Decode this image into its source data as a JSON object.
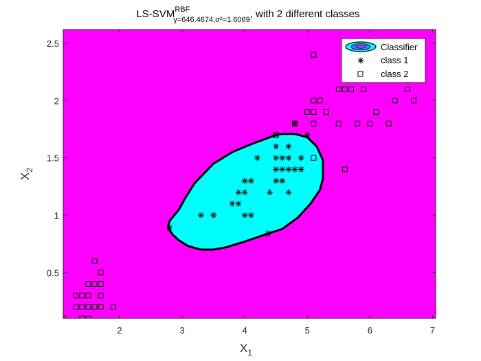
{
  "chart_data": {
    "type": "scatter",
    "title": {
      "main": "LS-SVM",
      "superscript": "RBF",
      "subscript": "γ=646.4674,σ²=1.6069",
      "suffix": ", with 2 different classes"
    },
    "xlabel": {
      "base": "X",
      "sub": "1"
    },
    "ylabel": {
      "base": "X",
      "sub": "2"
    },
    "xlim": [
      1.1,
      7.05
    ],
    "ylim": [
      0.1,
      2.62
    ],
    "xticks": [
      2,
      3,
      4,
      5,
      6,
      7
    ],
    "yticks": [
      0.5,
      1,
      1.5,
      2,
      2.5
    ],
    "xtick_labels": [
      "2",
      "3",
      "4",
      "5",
      "6",
      "7"
    ],
    "ytick_labels": [
      "0.5",
      "1",
      "1.5",
      "2",
      "2.5"
    ],
    "background_color": "#ff00ff",
    "region_color": "#00ffff",
    "legend": {
      "position": "top-right",
      "entries": [
        {
          "label": "Classifier",
          "marker": "contour"
        },
        {
          "label": "class 1",
          "marker": "asterisk"
        },
        {
          "label": "class 2",
          "marker": "square"
        }
      ]
    },
    "classifier_boundary": [
      [
        2.77,
        0.89
      ],
      [
        2.8,
        0.95
      ],
      [
        2.95,
        1.05
      ],
      [
        3.05,
        1.15
      ],
      [
        3.2,
        1.28
      ],
      [
        3.5,
        1.45
      ],
      [
        3.8,
        1.55
      ],
      [
        4.1,
        1.62
      ],
      [
        4.4,
        1.68
      ],
      [
        4.5,
        1.7
      ],
      [
        4.6,
        1.71
      ],
      [
        4.8,
        1.71
      ],
      [
        5.0,
        1.68
      ],
      [
        5.15,
        1.6
      ],
      [
        5.25,
        1.48
      ],
      [
        5.25,
        1.32
      ],
      [
        5.2,
        1.22
      ],
      [
        5.05,
        1.1
      ],
      [
        4.85,
        0.98
      ],
      [
        4.6,
        0.88
      ],
      [
        4.37,
        0.84
      ],
      [
        4.0,
        0.77
      ],
      [
        3.7,
        0.72
      ],
      [
        3.5,
        0.7
      ],
      [
        3.3,
        0.7
      ],
      [
        3.1,
        0.73
      ],
      [
        2.95,
        0.78
      ],
      [
        2.85,
        0.83
      ]
    ],
    "series": [
      {
        "name": "class 1",
        "marker": "asterisk",
        "points": [
          [
            3.3,
            1.0
          ],
          [
            3.5,
            1.0
          ],
          [
            3.8,
            1.1
          ],
          [
            3.9,
            1.1
          ],
          [
            3.9,
            1.2
          ],
          [
            4.0,
            1.2
          ],
          [
            4.0,
            1.3
          ],
          [
            4.1,
            1.3
          ],
          [
            4.0,
            1.0
          ],
          [
            4.1,
            1.0
          ],
          [
            4.2,
            1.5
          ],
          [
            4.4,
            1.2
          ],
          [
            4.5,
            1.3
          ],
          [
            4.5,
            1.4
          ],
          [
            4.5,
            1.5
          ],
          [
            4.5,
            1.6
          ],
          [
            4.6,
            1.5
          ],
          [
            4.6,
            1.4
          ],
          [
            4.6,
            1.3
          ],
          [
            4.7,
            1.4
          ],
          [
            4.7,
            1.5
          ],
          [
            4.7,
            1.6
          ],
          [
            4.7,
            1.2
          ],
          [
            4.8,
            1.4
          ],
          [
            4.9,
            1.5
          ],
          [
            4.9,
            1.4
          ],
          [
            5.0,
            1.7
          ],
          [
            4.8,
            1.8
          ],
          [
            4.5,
            1.7
          ],
          [
            4.37,
            0.84
          ],
          [
            2.8,
            0.89
          ]
        ]
      },
      {
        "name": "class 2",
        "marker": "square",
        "points": [
          [
            1.1,
            0.1
          ],
          [
            1.3,
            0.2
          ],
          [
            1.3,
            0.3
          ],
          [
            1.4,
            0.2
          ],
          [
            1.4,
            0.3
          ],
          [
            1.4,
            0.1
          ],
          [
            1.5,
            0.1
          ],
          [
            1.5,
            0.2
          ],
          [
            1.5,
            0.3
          ],
          [
            1.5,
            0.4
          ],
          [
            1.6,
            0.2
          ],
          [
            1.6,
            0.4
          ],
          [
            1.6,
            0.6
          ],
          [
            1.7,
            0.2
          ],
          [
            1.7,
            0.3
          ],
          [
            1.7,
            0.4
          ],
          [
            1.7,
            0.5
          ],
          [
            1.9,
            0.2
          ],
          [
            4.5,
            1.7
          ],
          [
            4.8,
            1.8
          ],
          [
            5.0,
            1.9
          ],
          [
            5.1,
            1.9
          ],
          [
            5.1,
            1.8
          ],
          [
            5.1,
            2.0
          ],
          [
            5.1,
            2.4
          ],
          [
            5.2,
            2.0
          ],
          [
            5.1,
            1.5
          ],
          [
            5.3,
            1.9
          ],
          [
            5.5,
            1.8
          ],
          [
            5.5,
            2.1
          ],
          [
            5.6,
            2.1
          ],
          [
            5.6,
            1.4
          ],
          [
            5.7,
            2.1
          ],
          [
            5.8,
            1.8
          ],
          [
            5.9,
            2.1
          ],
          [
            6.0,
            1.8
          ],
          [
            6.1,
            1.9
          ],
          [
            6.3,
            1.8
          ],
          [
            6.4,
            2.0
          ],
          [
            6.6,
            2.1
          ],
          [
            6.7,
            2.0
          ]
        ]
      }
    ]
  }
}
